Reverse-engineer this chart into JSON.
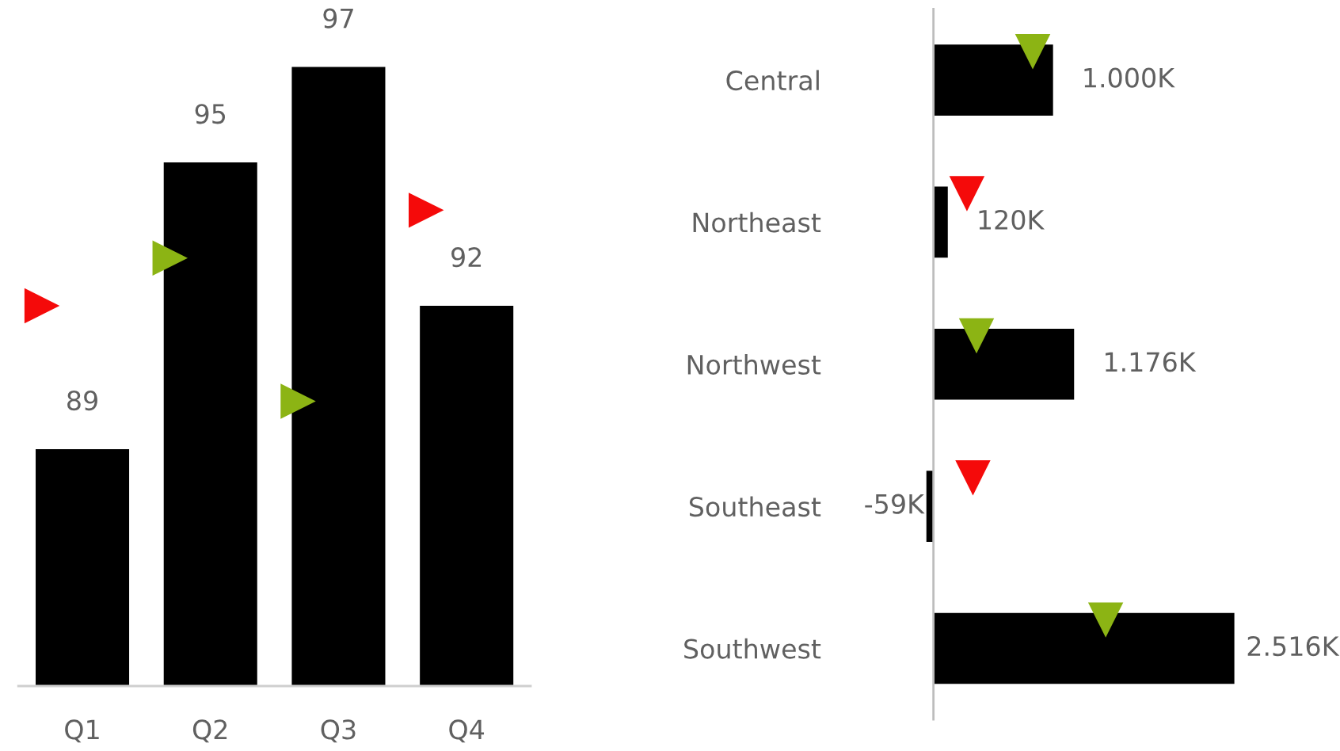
{
  "chart_data": [
    {
      "type": "bar",
      "categories": [
        "Q1",
        "Q2",
        "Q3",
        "Q4"
      ],
      "series": [
        {
          "color": "#000000",
          "values": [
            89,
            95,
            97,
            92
          ],
          "value_labels": [
            "89",
            "95",
            "97",
            "92"
          ]
        },
        {
          "type": "scatter",
          "x": [
            "Q1",
            "Q2",
            "Q3",
            "Q4"
          ],
          "values": [
            92,
            93,
            90,
            94
          ],
          "colors": [
            "#f50a0a",
            "#8cb414",
            "#8cb414",
            "#f50a0a"
          ],
          "marker": "triangle"
        }
      ],
      "tick_labels": "x"
    },
    {
      "type": "bar",
      "orientation": "horizontal",
      "categories": [
        "Central",
        "Northeast",
        "Northwest",
        "Southeast",
        "Southwest"
      ],
      "series": [
        {
          "color": "#000000",
          "values": [
            1000,
            120,
            1176,
            -59,
            2516
          ],
          "value_labels": [
            "1.000K",
            "120K",
            "1.176K",
            "-59K",
            "2.516K"
          ]
        },
        {
          "type": "scatter",
          "values": [
            830,
            280,
            360,
            330,
            1440
          ],
          "colors": [
            "#8cb414",
            "#f50a0a",
            "#8cb414",
            "#f50a0a",
            "#8cb414"
          ],
          "marker": "triangle"
        }
      ],
      "tick_labels": "y"
    }
  ]
}
